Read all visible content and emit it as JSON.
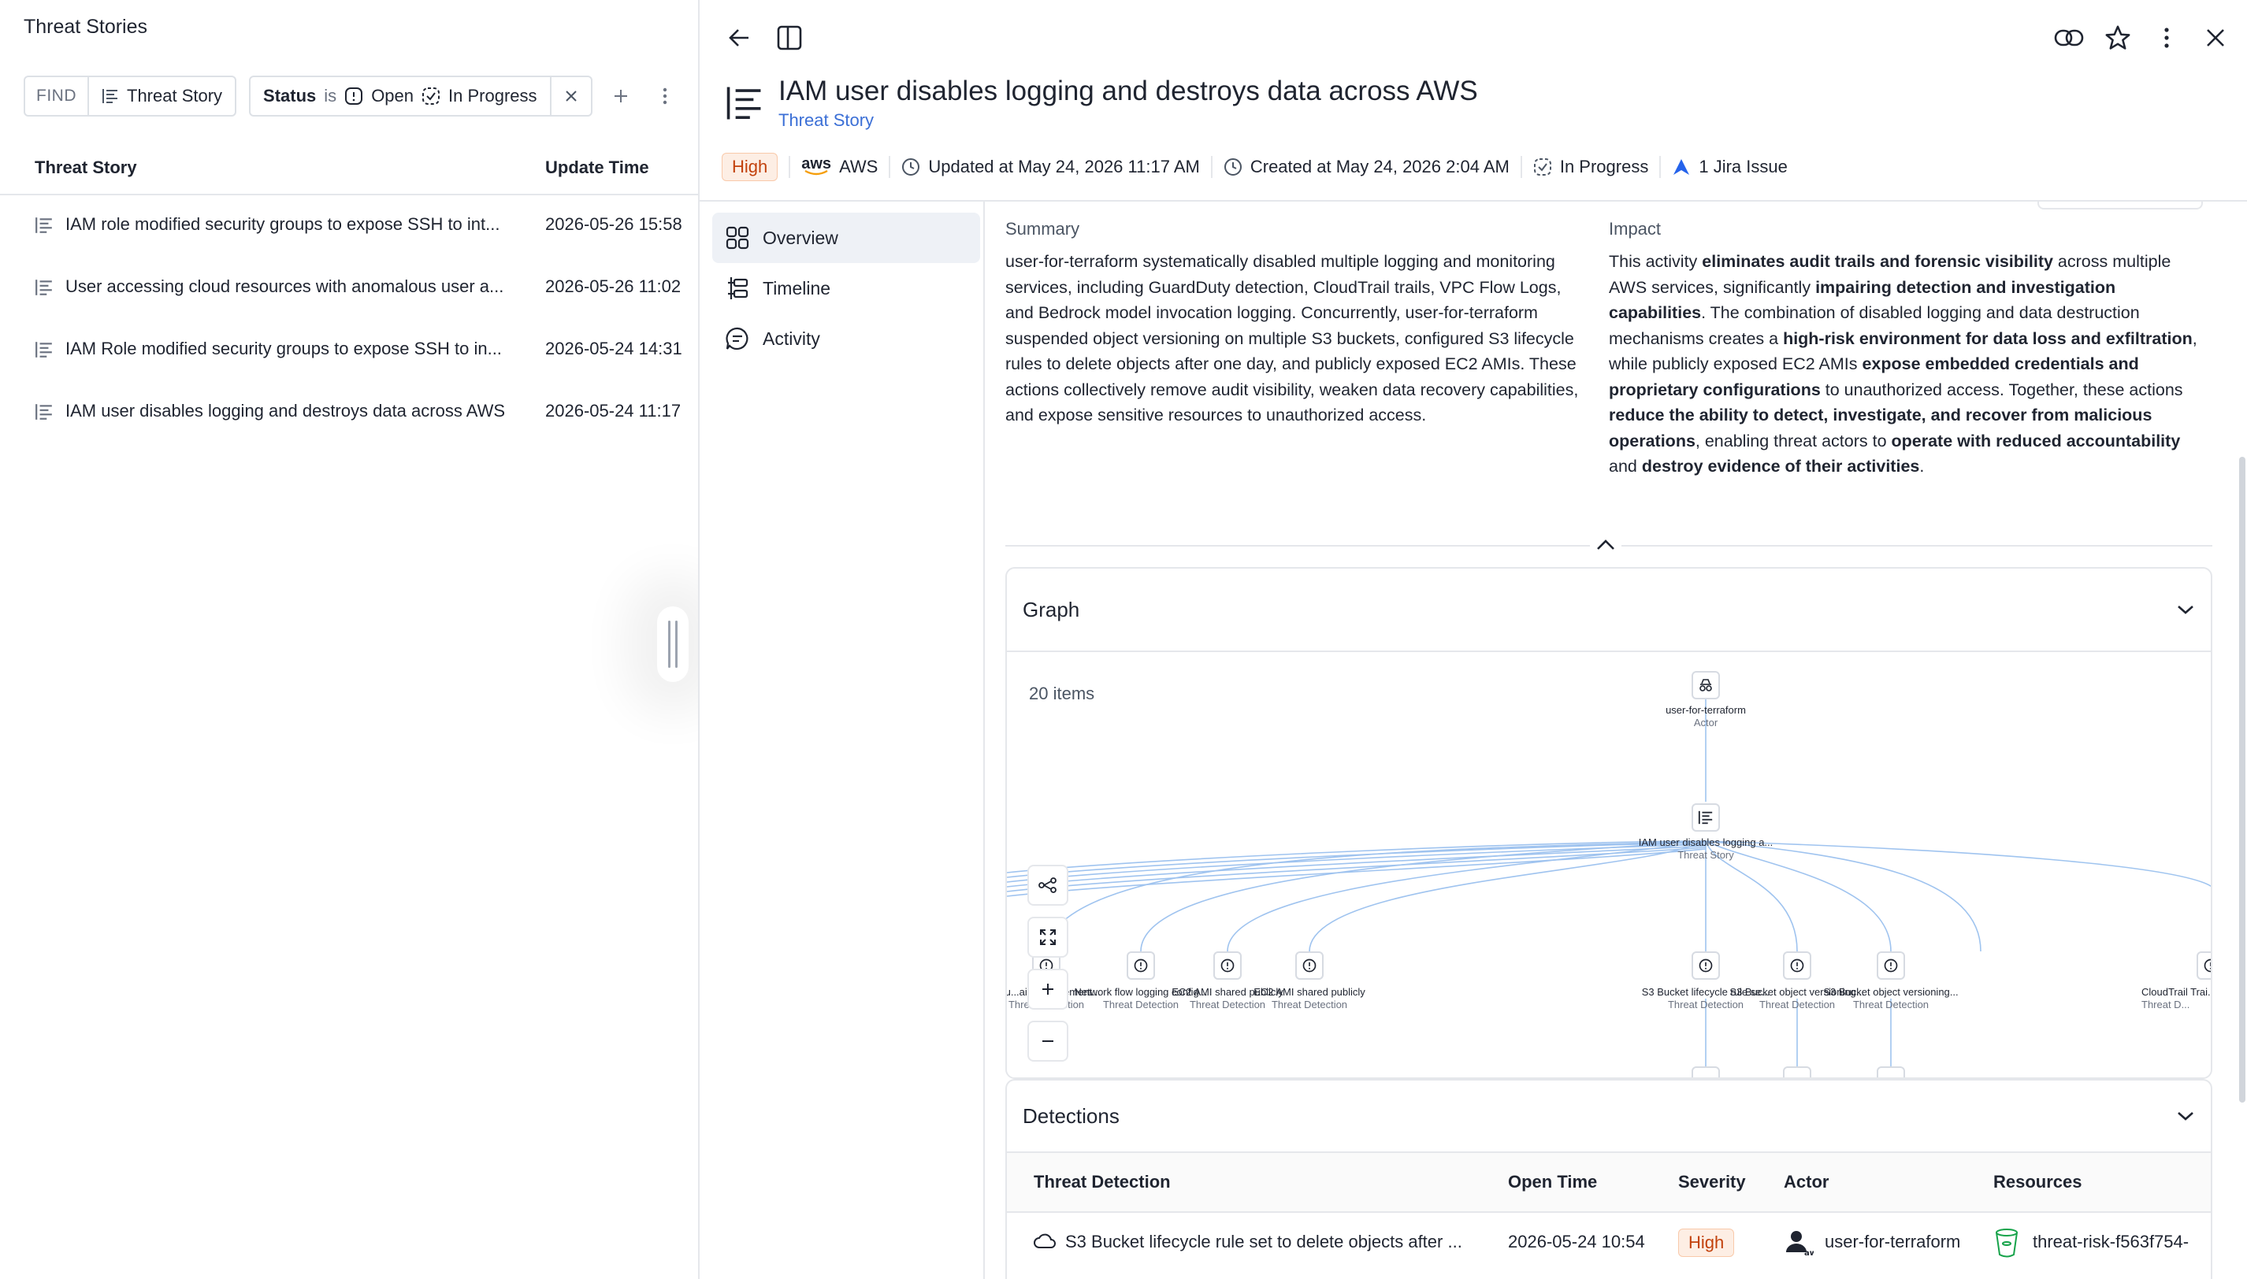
{
  "left": {
    "title": "Threat Stories",
    "filter": {
      "find_label": "FIND",
      "entity_label": "Threat Story",
      "status_label": "Status",
      "operator": "is",
      "value_open": "Open",
      "value_in_progress": "In Progress"
    },
    "columns": [
      "Threat Story",
      "Update Time"
    ],
    "rows": [
      {
        "name": "IAM role modified security groups to expose SSH to int...",
        "time": "2026-05-26 15:58"
      },
      {
        "name": "User accessing cloud resources with anomalous user a...",
        "time": "2026-05-26 11:02"
      },
      {
        "name": "IAM Role modified security groups to expose SSH to in...",
        "time": "2026-05-24 14:31"
      },
      {
        "name": "IAM user disables logging and destroys data across AWS",
        "time": "2026-05-24 11:17"
      }
    ]
  },
  "detail": {
    "title": "IAM user disables logging and destroys data across AWS",
    "subtitle": "Threat Story",
    "severity": "High",
    "cloud_logo": "aws",
    "cloud": "AWS",
    "updated": "Updated at May 24, 2026 11:17 AM",
    "created": "Created at May 24, 2026 2:04 AM",
    "status": "In Progress",
    "jira": "1 Jira Issue",
    "nav": [
      "Overview",
      "Timeline",
      "Activity"
    ],
    "summary_label": "Summary",
    "summary_text": "user-for-terraform systematically disabled multiple logging and monitoring services, including GuardDuty detection, CloudTrail trails, VPC Flow Logs, and Bedrock model invocation logging. Concurrently, user-for-terraform suspended object versioning on multiple S3 buckets, configured S3 lifecycle rules to delete objects after one day, and publicly exposed EC2 AMIs. These actions collectively remove audit visibility, weaken data recovery capabilities, and expose sensitive resources to unauthorized access.",
    "impact_label": "Impact",
    "impact_parts": [
      {
        "t": "This activity ",
        "b": false
      },
      {
        "t": "eliminates audit trails and forensic visibility",
        "b": true
      },
      {
        "t": " across multiple AWS services, significantly ",
        "b": false
      },
      {
        "t": "impairing detection and investigation capabilities",
        "b": true
      },
      {
        "t": ". The combination of disabled logging and data destruction mechanisms creates a ",
        "b": false
      },
      {
        "t": "high-risk environment for data loss and exfiltration",
        "b": true
      },
      {
        "t": ", while publicly exposed EC2 AMIs ",
        "b": false
      },
      {
        "t": "expose embedded credentials and proprietary configurations",
        "b": true
      },
      {
        "t": " to unauthorized access. Together, these actions ",
        "b": false
      },
      {
        "t": "reduce the ability to detect, investigate, and recover from malicious operations",
        "b": true
      },
      {
        "t": ", enabling threat actors to ",
        "b": false
      },
      {
        "t": "operate with reduced accountability",
        "b": true
      },
      {
        "t": " and ",
        "b": false
      },
      {
        "t": "destroy evidence of their activities",
        "b": true
      },
      {
        "t": ".",
        "b": false
      }
    ]
  },
  "graph": {
    "title": "Graph",
    "items_count": "20 items",
    "actor": {
      "name": "user-for-terraform",
      "kind": "Actor"
    },
    "story": {
      "name": "IAM user disables logging a...",
      "kind": "Threat Story"
    },
    "detections": [
      {
        "name": "Cou...ail management...",
        "kind": "Threat Detection"
      },
      {
        "name": "Network flow logging config...",
        "kind": "Threat Detection"
      },
      {
        "name": "EC2 AMI shared publicly",
        "kind": "Threat Detection"
      },
      {
        "name": "EC2 AMI shared publicly",
        "kind": "Threat Detection"
      },
      {
        "name": "S3 Bucket lifecycle rule se...",
        "kind": "Threat Detection"
      },
      {
        "name": "S3 Bucket object versioning...",
        "kind": "Threat Detection"
      },
      {
        "name": "S3 Bucket object versioning...",
        "kind": "Threat Detection"
      },
      {
        "name": "CloudTrail Trai...",
        "kind": "Threat D..."
      }
    ]
  },
  "detections": {
    "title": "Detections",
    "columns": [
      "Threat Detection",
      "Open Time",
      "Severity",
      "Actor",
      "Resources"
    ],
    "rows": [
      {
        "detection": "S3 Bucket lifecycle rule set to delete objects after ...",
        "open_time": "2026-05-24 10:54",
        "severity": "High",
        "actor": "user-for-terraform",
        "resource": "threat-risk-f563f754-"
      }
    ]
  },
  "colors": {
    "accent": "#3b6fd6",
    "high_bg": "#fdeee4",
    "high_fg": "#c2410c",
    "border": "#e5e7eb"
  }
}
